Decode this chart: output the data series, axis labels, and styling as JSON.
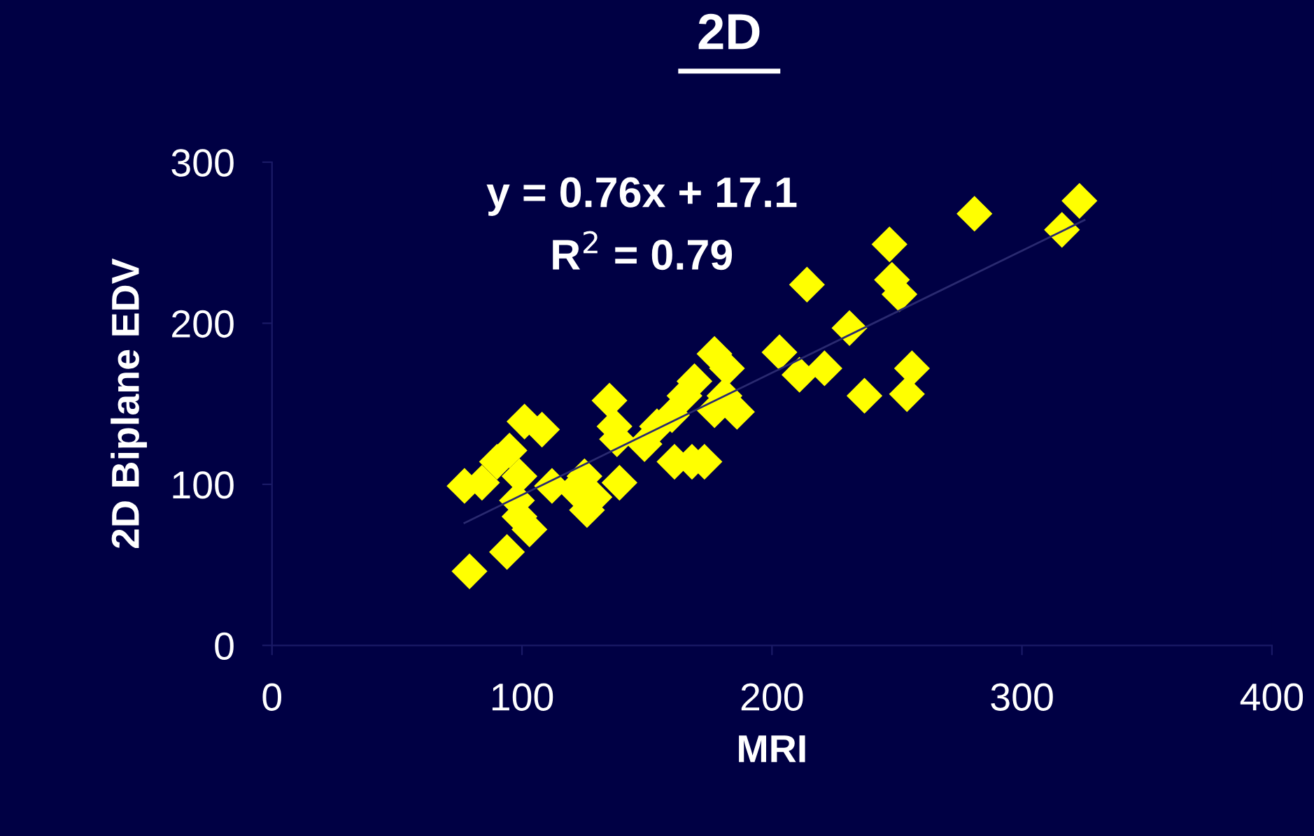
{
  "chart_data": {
    "type": "scatter",
    "title": "2D",
    "xlabel": "MRI",
    "ylabel": "2D Biplane EDV",
    "xlim": [
      0,
      400
    ],
    "xticks": [
      0,
      100,
      200,
      300,
      400
    ],
    "ylim": [
      0,
      300
    ],
    "yticks": [
      0,
      100,
      200,
      300
    ],
    "grid": false,
    "marker": "diamond",
    "annotations": [
      "y = 0.76x + 17.1",
      "R$^{2}$ = 0.79"
    ],
    "series": [
      {
        "color": "#ffff00",
        "x": [
          79,
          94,
          103,
          99,
          98,
          77,
          84,
          90,
          95,
          101,
          108,
          99,
          112,
          121,
          125,
          129,
          126,
          139,
          135,
          137,
          138,
          149,
          154,
          161,
          168,
          173,
          177,
          182,
          169,
          165,
          160,
          177,
          186,
          181,
          214,
          247,
          248,
          251,
          231,
          203,
          211,
          221,
          237,
          256,
          254,
          281,
          323,
          316
        ],
        "values": [
          46,
          58,
          72,
          80,
          90,
          99,
          101,
          114,
          121,
          139,
          134,
          105,
          99,
          97,
          105,
          92,
          84,
          101,
          152,
          136,
          128,
          125,
          136,
          114,
          114,
          114,
          181,
          172,
          164,
          155,
          143,
          146,
          145,
          155,
          224,
          249,
          227,
          218,
          197,
          182,
          168,
          172,
          155,
          172,
          156,
          268,
          276,
          258
        ]
      },
      {
        "type": "line",
        "color": "#2a2a70",
        "marker": "none",
        "x": [
          77,
          325
        ],
        "values": [
          76,
          264
        ]
      }
    ]
  }
}
